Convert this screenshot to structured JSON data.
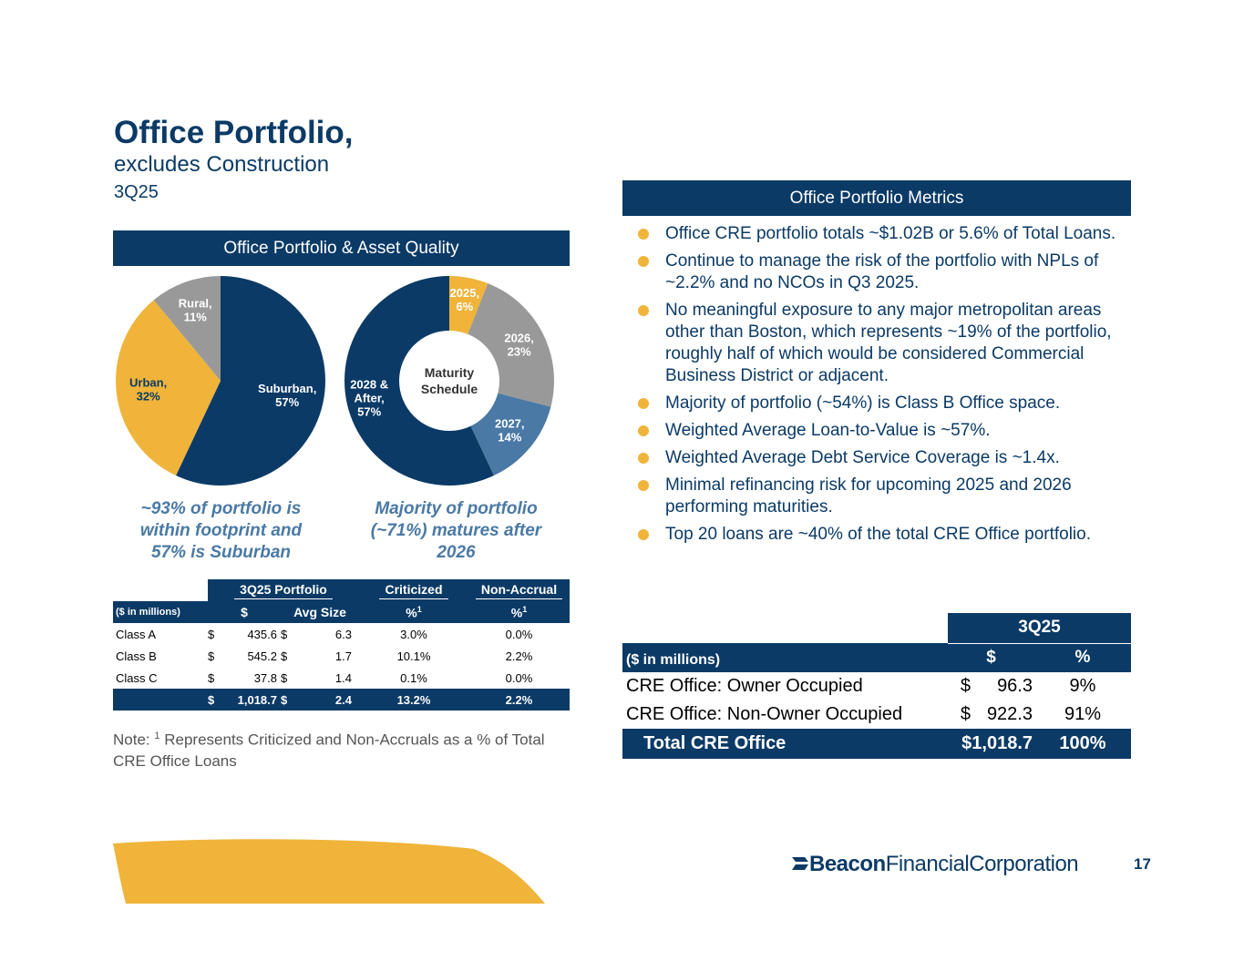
{
  "header": {
    "title": "Office Portfolio,",
    "subtitle": "excludes Construction",
    "period": "3Q25"
  },
  "left_panel": {
    "band_title": "Office Portfolio & Asset Quality",
    "caption_left": [
      "~93% of portfolio is",
      "within footprint and",
      "57% is Suburban"
    ],
    "caption_right": [
      "Majority of portfolio",
      "(~71%) matures after",
      "2026"
    ]
  },
  "chart_data": [
    {
      "type": "pie",
      "title": "",
      "labels": [
        "Suburban",
        "Urban",
        "Rural"
      ],
      "values": [
        57,
        32,
        11
      ],
      "label_text": [
        "Suburban,|57%",
        "Urban,|32%",
        "Rural,|11%"
      ],
      "colors": [
        "#0b3a66",
        "#f0b43a",
        "#999999"
      ],
      "label_colors": [
        "#ffffff",
        "#0b3a66",
        "#ffffff"
      ]
    },
    {
      "type": "pie",
      "title": "Maturity Schedule",
      "center_label": [
        "Maturity",
        "Schedule"
      ],
      "labels": [
        "2025",
        "2026",
        "2027",
        "2028 & After"
      ],
      "values": [
        6,
        23,
        14,
        57
      ],
      "label_text": [
        "2025,|6%",
        "2026,|23%",
        "2027,|14%",
        "2028 &|After,|57%"
      ],
      "colors": [
        "#f0b43a",
        "#999999",
        "#4a79a5",
        "#0b3a66"
      ],
      "label_colors": [
        "#ffffff",
        "#ffffff",
        "#ffffff",
        "#ffffff"
      ]
    }
  ],
  "quality_table": {
    "group_headers": [
      "3Q25 Portfolio",
      "Criticized",
      "Non-Accrual"
    ],
    "units": "($ in millions)",
    "col_headers": [
      "$",
      "Avg Size",
      "%",
      "%"
    ],
    "sup": "1",
    "rows": [
      {
        "label": "Class A",
        "cur1": "$",
        "amount": "435.6",
        "cur2": "$",
        "avg": "6.3",
        "crit": "3.0%",
        "nonacc": "0.0%"
      },
      {
        "label": "Class B",
        "cur1": "$",
        "amount": "545.2",
        "cur2": "$",
        "avg": "1.7",
        "crit": "10.1%",
        "nonacc": "2.2%"
      },
      {
        "label": "Class C",
        "cur1": "$",
        "amount": "37.8",
        "cur2": "$",
        "avg": "1.4",
        "crit": "0.1%",
        "nonacc": "0.0%"
      }
    ],
    "total": {
      "cur1": "$",
      "amount": "1,018.7",
      "cur2": "$",
      "avg": "2.4",
      "crit": "13.2%",
      "nonacc": "2.2%"
    }
  },
  "note": {
    "prefix": "Note:",
    "sup": "1",
    "text": "Represents Criticized and Non-Accruals as a % of Total CRE Office Loans"
  },
  "right_panel": {
    "band_title": "Office Portfolio Metrics",
    "bullets": [
      "Office CRE portfolio totals ~$1.02B or 5.6% of Total Loans.",
      "Continue to manage the risk of the portfolio with NPLs of ~2.2% and no NCOs in Q3 2025.",
      "No meaningful exposure to any major metropolitan areas other than Boston, which represents ~19% of the portfolio, roughly half of which would be considered Commercial Business District or adjacent.",
      "Majority of portfolio (~54%) is Class B Office space.",
      "Weighted Average Loan-to-Value is ~57%.",
      "Weighted Average Debt Service Coverage is ~1.4x.",
      "Minimal refinancing risk for upcoming 2025 and 2026 performing maturities.",
      "Top 20 loans are ~40% of the total CRE Office portfolio."
    ]
  },
  "occupancy_table": {
    "period": "3Q25",
    "units": "($ in millions)",
    "col_dollar": "$",
    "col_pct": "%",
    "rows": [
      {
        "label": "CRE Office: Owner Occupied",
        "cur": "$",
        "amount": "96.3",
        "pct": "9%"
      },
      {
        "label": "CRE Office: Non-Owner Occupied",
        "cur": "$",
        "amount": "922.3",
        "pct": "91%"
      }
    ],
    "total": {
      "label": "Total CRE Office",
      "amount": "$1,018.7",
      "pct": "100%"
    }
  },
  "footer": {
    "logo_bold": "Beacon",
    "logo_rest": "FinancialCorporation",
    "page_number": "17"
  },
  "colors": {
    "navy": "#0b3a66",
    "gold": "#f0b43a",
    "gray": "#999999",
    "steel": "#4a79a5"
  }
}
